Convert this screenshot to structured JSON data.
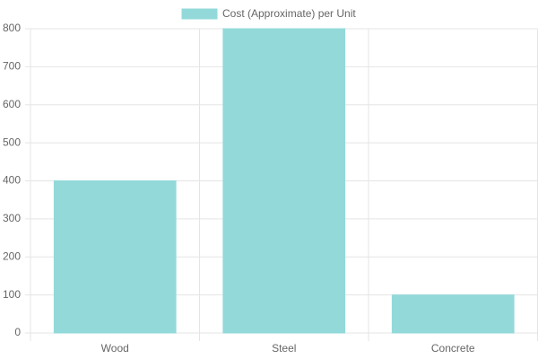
{
  "chart_data": {
    "type": "bar",
    "legend": "top",
    "categories": [
      "Wood",
      "Steel",
      "Concrete"
    ],
    "series": [
      {
        "name": "Cost (Approximate) per Unit",
        "color": "#93d9d9",
        "values": [
          400,
          800,
          100
        ]
      }
    ],
    "ylim": [
      0,
      800
    ],
    "yticks": [
      0,
      100,
      200,
      300,
      400,
      500,
      600,
      700,
      800
    ],
    "grid": true
  }
}
